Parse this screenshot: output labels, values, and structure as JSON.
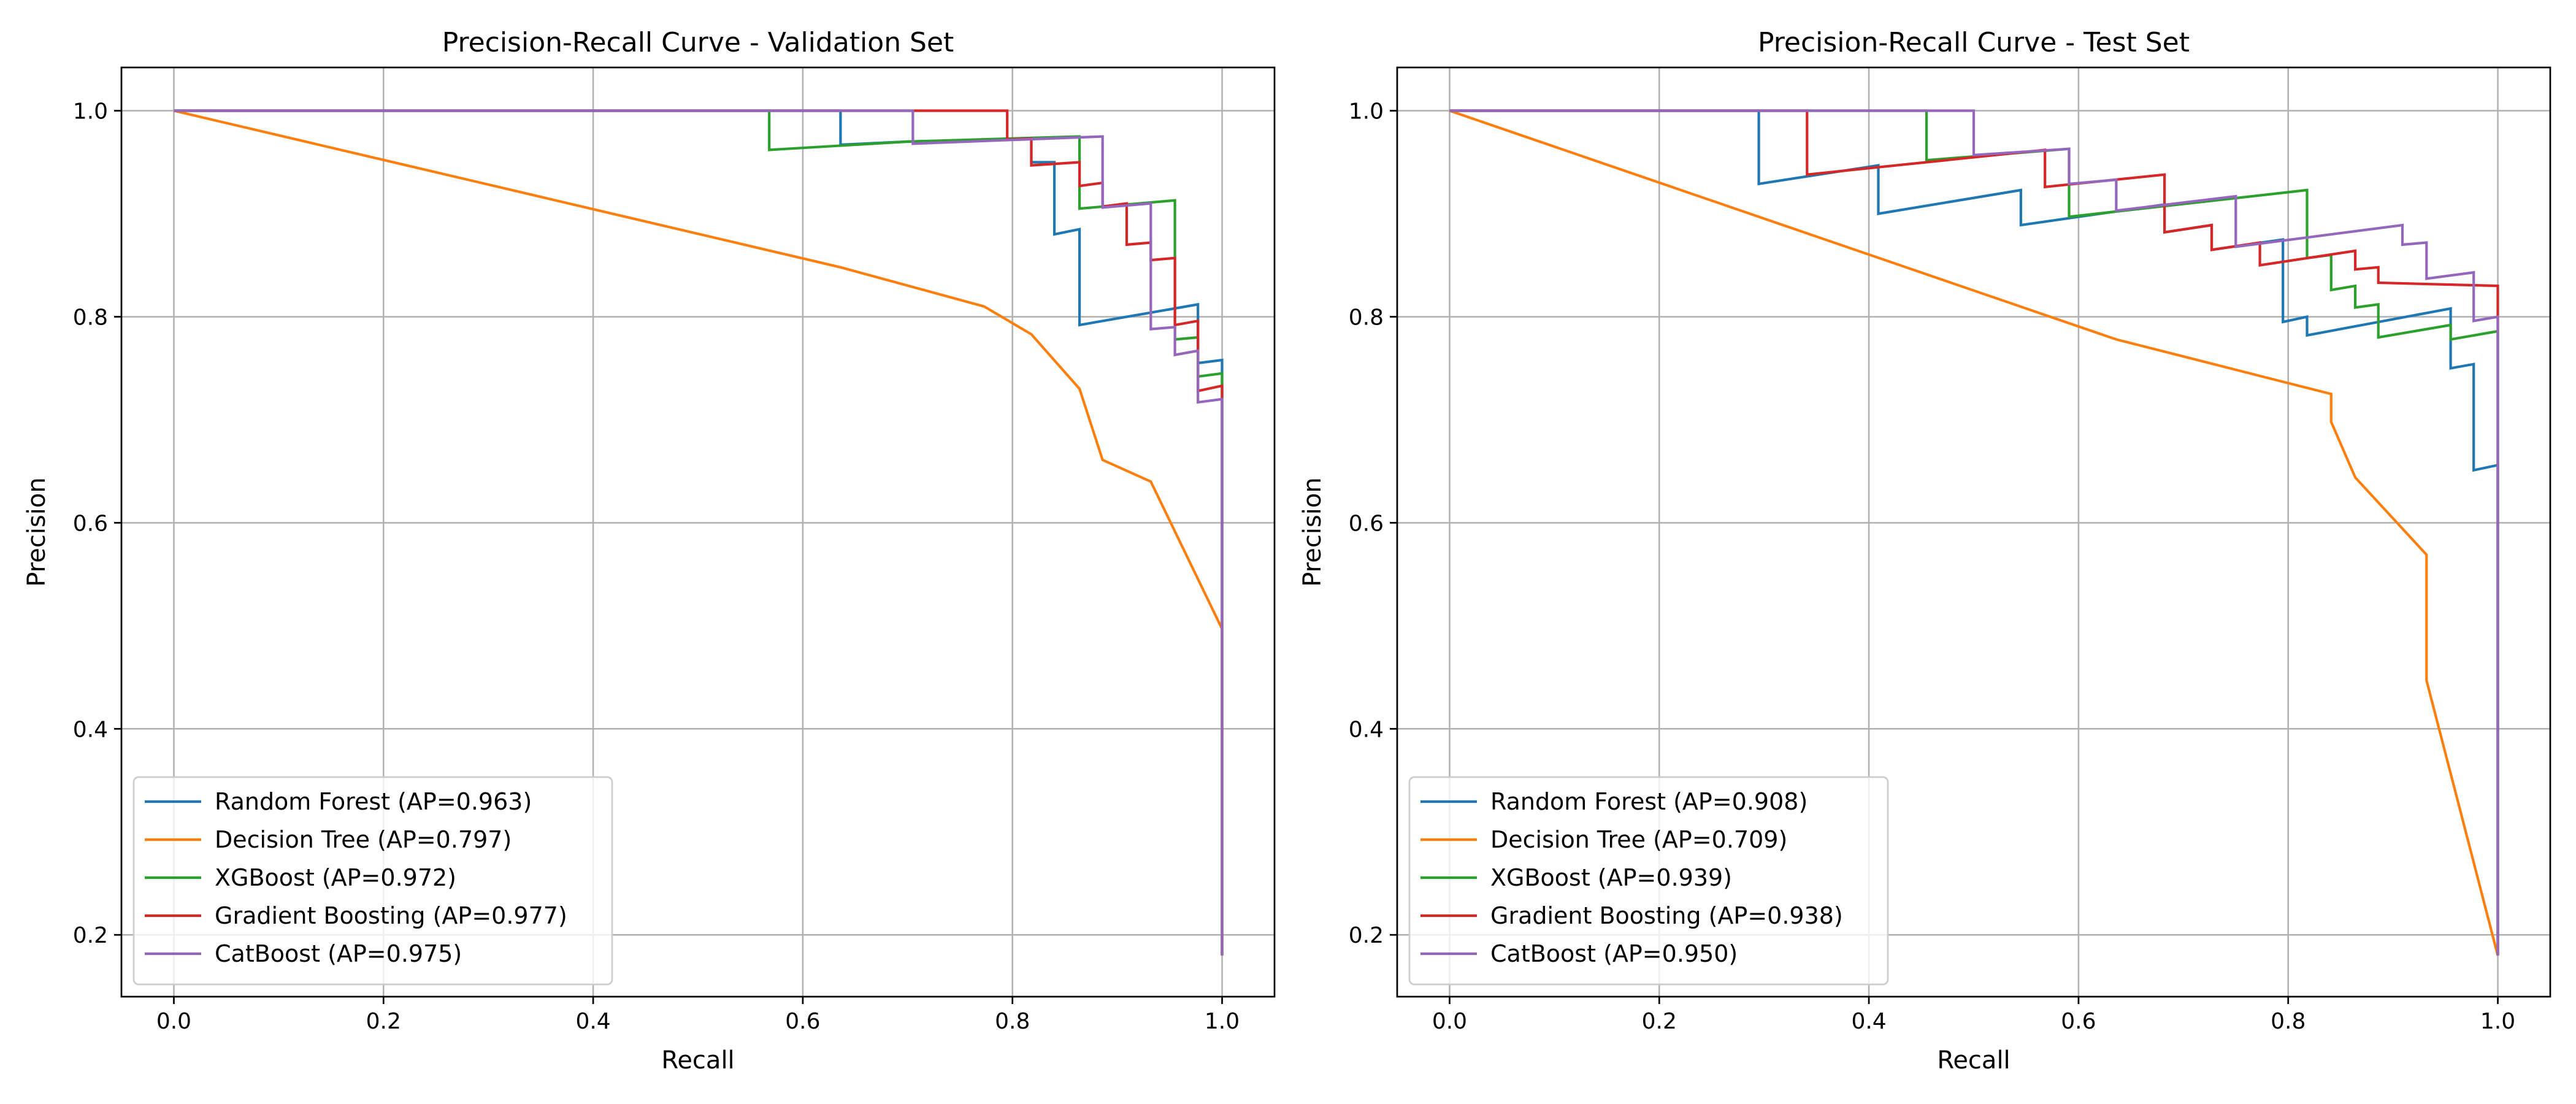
{
  "colors": {
    "random_forest": "#1f77b4",
    "decision_tree": "#ff7f0e",
    "xgboost": "#2ca02c",
    "gradient_boosting": "#d62728",
    "catboost": "#9467bd"
  },
  "chart_data": [
    {
      "type": "line",
      "title": "Precision-Recall Curve - Validation Set",
      "xlabel": "Recall",
      "ylabel": "Precision",
      "xlim": [
        -0.05,
        1.05
      ],
      "ylim": [
        0.14,
        1.042
      ],
      "xticks": [
        0.0,
        0.2,
        0.4,
        0.6,
        0.8,
        1.0
      ],
      "yticks": [
        0.2,
        0.4,
        0.6,
        0.8,
        1.0
      ],
      "xtick_labels": [
        "0.0",
        "0.2",
        "0.4",
        "0.6",
        "0.8",
        "1.0"
      ],
      "ytick_labels": [
        "0.2",
        "0.4",
        "0.6",
        "0.8",
        "1.0"
      ],
      "grid": true,
      "legend_position": "lower-left",
      "series": [
        {
          "name": "Random Forest (AP=0.963)",
          "color": "#1f77b4",
          "points": [
            [
              0.0,
              1.0
            ],
            [
              0.636,
              1.0
            ],
            [
              0.636,
              0.967
            ],
            [
              0.7,
              0.97
            ],
            [
              0.818,
              0.973
            ],
            [
              0.818,
              0.95
            ],
            [
              0.84,
              0.95
            ],
            [
              0.84,
              0.88
            ],
            [
              0.864,
              0.885
            ],
            [
              0.864,
              0.792
            ],
            [
              0.977,
              0.812
            ],
            [
              0.977,
              0.755
            ],
            [
              1.0,
              0.758
            ],
            [
              1.0,
              0.18
            ]
          ]
        },
        {
          "name": "Decision Tree (AP=0.797)",
          "color": "#ff7f0e",
          "points": [
            [
              0.0,
              1.0
            ],
            [
              0.636,
              0.848
            ],
            [
              0.773,
              0.81
            ],
            [
              0.818,
              0.783
            ],
            [
              0.864,
              0.73
            ],
            [
              0.886,
              0.661
            ],
            [
              0.932,
              0.64
            ],
            [
              1.0,
              0.497
            ],
            [
              1.0,
              0.18
            ]
          ]
        },
        {
          "name": "XGBoost (AP=0.972)",
          "color": "#2ca02c",
          "points": [
            [
              0.0,
              1.0
            ],
            [
              0.568,
              1.0
            ],
            [
              0.568,
              0.962
            ],
            [
              0.7,
              0.97
            ],
            [
              0.864,
              0.975
            ],
            [
              0.864,
              0.905
            ],
            [
              0.955,
              0.913
            ],
            [
              0.955,
              0.778
            ],
            [
              0.977,
              0.78
            ],
            [
              0.977,
              0.742
            ],
            [
              1.0,
              0.745
            ],
            [
              1.0,
              0.18
            ]
          ]
        },
        {
          "name": "Gradient Boosting (AP=0.977)",
          "color": "#d62728",
          "points": [
            [
              0.0,
              1.0
            ],
            [
              0.795,
              1.0
            ],
            [
              0.795,
              0.972
            ],
            [
              0.818,
              0.973
            ],
            [
              0.818,
              0.947
            ],
            [
              0.864,
              0.95
            ],
            [
              0.864,
              0.927
            ],
            [
              0.886,
              0.93
            ],
            [
              0.886,
              0.907
            ],
            [
              0.909,
              0.91
            ],
            [
              0.909,
              0.87
            ],
            [
              0.932,
              0.872
            ],
            [
              0.932,
              0.855
            ],
            [
              0.955,
              0.857
            ],
            [
              0.955,
              0.792
            ],
            [
              0.977,
              0.796
            ],
            [
              0.977,
              0.728
            ],
            [
              1.0,
              0.733
            ],
            [
              1.0,
              0.18
            ]
          ]
        },
        {
          "name": "CatBoost (AP=0.975)",
          "color": "#9467bd",
          "points": [
            [
              0.0,
              1.0
            ],
            [
              0.705,
              1.0
            ],
            [
              0.705,
              0.968
            ],
            [
              0.886,
              0.975
            ],
            [
              0.886,
              0.906
            ],
            [
              0.932,
              0.91
            ],
            [
              0.932,
              0.788
            ],
            [
              0.955,
              0.79
            ],
            [
              0.955,
              0.763
            ],
            [
              0.977,
              0.767
            ],
            [
              0.977,
              0.717
            ],
            [
              1.0,
              0.72
            ],
            [
              1.0,
              0.18
            ]
          ]
        }
      ]
    },
    {
      "type": "line",
      "title": "Precision-Recall Curve - Test Set",
      "xlabel": "Recall",
      "ylabel": "Precision",
      "xlim": [
        -0.05,
        1.05
      ],
      "ylim": [
        0.14,
        1.042
      ],
      "xticks": [
        0.0,
        0.2,
        0.4,
        0.6,
        0.8,
        1.0
      ],
      "yticks": [
        0.2,
        0.4,
        0.6,
        0.8,
        1.0
      ],
      "xtick_labels": [
        "0.0",
        "0.2",
        "0.4",
        "0.6",
        "0.8",
        "1.0"
      ],
      "ytick_labels": [
        "0.2",
        "0.4",
        "0.6",
        "0.8",
        "1.0"
      ],
      "grid": true,
      "legend_position": "lower-left",
      "series": [
        {
          "name": "Random Forest (AP=0.908)",
          "color": "#1f77b4",
          "points": [
            [
              0.0,
              1.0
            ],
            [
              0.295,
              1.0
            ],
            [
              0.295,
              0.929
            ],
            [
              0.409,
              0.947
            ],
            [
              0.409,
              0.9
            ],
            [
              0.545,
              0.923
            ],
            [
              0.545,
              0.889
            ],
            [
              0.682,
              0.909
            ],
            [
              0.682,
              0.882
            ],
            [
              0.727,
              0.889
            ],
            [
              0.727,
              0.865
            ],
            [
              0.795,
              0.875
            ],
            [
              0.795,
              0.795
            ],
            [
              0.818,
              0.8
            ],
            [
              0.818,
              0.782
            ],
            [
              0.955,
              0.808
            ],
            [
              0.955,
              0.75
            ],
            [
              0.977,
              0.754
            ],
            [
              0.977,
              0.651
            ],
            [
              1.0,
              0.656
            ],
            [
              1.0,
              0.18
            ]
          ]
        },
        {
          "name": "Decision Tree (AP=0.709)",
          "color": "#ff7f0e",
          "points": [
            [
              0.0,
              1.0
            ],
            [
              0.636,
              0.778
            ],
            [
              0.841,
              0.725
            ],
            [
              0.841,
              0.698
            ],
            [
              0.864,
              0.644
            ],
            [
              0.932,
              0.569
            ],
            [
              0.932,
              0.447
            ],
            [
              1.0,
              0.18
            ]
          ]
        },
        {
          "name": "XGBoost (AP=0.939)",
          "color": "#2ca02c",
          "points": [
            [
              0.0,
              1.0
            ],
            [
              0.455,
              1.0
            ],
            [
              0.455,
              0.952
            ],
            [
              0.591,
              0.963
            ],
            [
              0.591,
              0.897
            ],
            [
              0.818,
              0.923
            ],
            [
              0.818,
              0.857
            ],
            [
              0.841,
              0.86
            ],
            [
              0.841,
              0.826
            ],
            [
              0.864,
              0.83
            ],
            [
              0.864,
              0.809
            ],
            [
              0.886,
              0.812
            ],
            [
              0.886,
              0.78
            ],
            [
              0.955,
              0.792
            ],
            [
              0.955,
              0.778
            ],
            [
              1.0,
              0.786
            ],
            [
              1.0,
              0.18
            ]
          ]
        },
        {
          "name": "Gradient Boosting (AP=0.938)",
          "color": "#d62728",
          "points": [
            [
              0.0,
              1.0
            ],
            [
              0.341,
              1.0
            ],
            [
              0.341,
              0.938
            ],
            [
              0.568,
              0.962
            ],
            [
              0.568,
              0.926
            ],
            [
              0.682,
              0.938
            ],
            [
              0.682,
              0.882
            ],
            [
              0.727,
              0.889
            ],
            [
              0.727,
              0.865
            ],
            [
              0.773,
              0.872
            ],
            [
              0.773,
              0.85
            ],
            [
              0.864,
              0.864
            ],
            [
              0.864,
              0.846
            ],
            [
              0.886,
              0.848
            ],
            [
              0.886,
              0.833
            ],
            [
              1.0,
              0.83
            ],
            [
              1.0,
              0.18
            ]
          ]
        },
        {
          "name": "CatBoost (AP=0.950)",
          "color": "#9467bd",
          "points": [
            [
              0.0,
              1.0
            ],
            [
              0.5,
              1.0
            ],
            [
              0.5,
              0.957
            ],
            [
              0.591,
              0.963
            ],
            [
              0.591,
              0.929
            ],
            [
              0.636,
              0.933
            ],
            [
              0.636,
              0.903
            ],
            [
              0.75,
              0.917
            ],
            [
              0.75,
              0.868
            ],
            [
              0.909,
              0.889
            ],
            [
              0.909,
              0.87
            ],
            [
              0.932,
              0.872
            ],
            [
              0.932,
              0.837
            ],
            [
              0.977,
              0.843
            ],
            [
              0.977,
              0.796
            ],
            [
              1.0,
              0.8
            ],
            [
              1.0,
              0.18
            ]
          ]
        }
      ]
    }
  ]
}
